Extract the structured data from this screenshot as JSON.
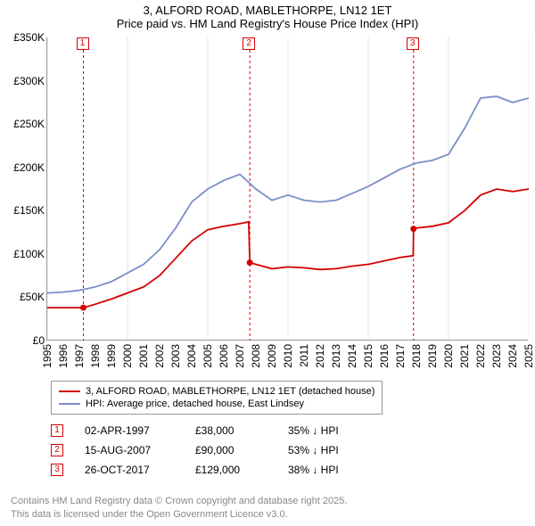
{
  "title": "3, ALFORD ROAD, MABLETHORPE, LN12 1ET",
  "subtitle": "Price paid vs. HM Land Registry's House Price Index (HPI)",
  "chart": {
    "type": "line",
    "background_color": "#ffffff",
    "grid_color": "#cccccc",
    "axis_color": "#999999",
    "label_fontsize": 12,
    "title_fontsize": 13,
    "x_axis": {
      "min": 1995,
      "max": 2025,
      "ticks": [
        1995,
        1996,
        1997,
        1998,
        1999,
        2000,
        2001,
        2002,
        2003,
        2004,
        2005,
        2006,
        2007,
        2008,
        2009,
        2010,
        2011,
        2012,
        2013,
        2014,
        2015,
        2016,
        2017,
        2018,
        2019,
        2020,
        2021,
        2022,
        2023,
        2024,
        2025
      ],
      "gridline_years": [
        1995,
        2000,
        2005,
        2010,
        2015,
        2020,
        2025
      ]
    },
    "y_axis": {
      "min": 0,
      "max": 350000,
      "tick_step": 50000,
      "tick_labels": [
        "£0",
        "£50K",
        "£100K",
        "£150K",
        "£200K",
        "£250K",
        "£300K",
        "£350K"
      ]
    },
    "series": [
      {
        "name": "price_paid",
        "label": "3, ALFORD ROAD, MABLETHORPE, LN12 1ET (detached house)",
        "color": "#d40000",
        "line_width": 1.8,
        "data": [
          [
            1995,
            38000
          ],
          [
            1996,
            38000
          ],
          [
            1997,
            38000
          ],
          [
            1997.25,
            38000
          ],
          [
            1998,
            42000
          ],
          [
            1999,
            48000
          ],
          [
            2000,
            55000
          ],
          [
            2001,
            62000
          ],
          [
            2002,
            75000
          ],
          [
            2003,
            95000
          ],
          [
            2004,
            115000
          ],
          [
            2005,
            128000
          ],
          [
            2006,
            132000
          ],
          [
            2007,
            135000
          ],
          [
            2007.55,
            137000
          ],
          [
            2007.62,
            90000
          ],
          [
            2008,
            88000
          ],
          [
            2009,
            83000
          ],
          [
            2010,
            85000
          ],
          [
            2011,
            84000
          ],
          [
            2012,
            82000
          ],
          [
            2013,
            83000
          ],
          [
            2014,
            86000
          ],
          [
            2015,
            88000
          ],
          [
            2016,
            92000
          ],
          [
            2017,
            96000
          ],
          [
            2017.8,
            98000
          ],
          [
            2017.82,
            129000
          ],
          [
            2018,
            130000
          ],
          [
            2019,
            132000
          ],
          [
            2020,
            136000
          ],
          [
            2021,
            150000
          ],
          [
            2022,
            168000
          ],
          [
            2023,
            175000
          ],
          [
            2024,
            172000
          ],
          [
            2025,
            175000
          ]
        ]
      },
      {
        "name": "hpi",
        "label": "HPI: Average price, detached house, East Lindsey",
        "color": "#7a8fc9",
        "line_width": 1.5,
        "data": [
          [
            1995,
            55000
          ],
          [
            1996,
            56000
          ],
          [
            1997,
            58000
          ],
          [
            1998,
            62000
          ],
          [
            1999,
            68000
          ],
          [
            2000,
            78000
          ],
          [
            2001,
            88000
          ],
          [
            2002,
            105000
          ],
          [
            2003,
            130000
          ],
          [
            2004,
            160000
          ],
          [
            2005,
            175000
          ],
          [
            2006,
            185000
          ],
          [
            2007,
            192000
          ],
          [
            2008,
            175000
          ],
          [
            2009,
            162000
          ],
          [
            2010,
            168000
          ],
          [
            2011,
            162000
          ],
          [
            2012,
            160000
          ],
          [
            2013,
            162000
          ],
          [
            2014,
            170000
          ],
          [
            2015,
            178000
          ],
          [
            2016,
            188000
          ],
          [
            2017,
            198000
          ],
          [
            2018,
            205000
          ],
          [
            2019,
            208000
          ],
          [
            2020,
            215000
          ],
          [
            2021,
            245000
          ],
          [
            2022,
            280000
          ],
          [
            2023,
            282000
          ],
          [
            2024,
            275000
          ],
          [
            2025,
            280000
          ]
        ]
      }
    ],
    "sale_markers": [
      {
        "index": 1,
        "year": 1997.25,
        "price": 38000,
        "color": "#d40000"
      },
      {
        "index": 2,
        "year": 2007.62,
        "price": 90000,
        "color": "#d40000"
      },
      {
        "index": 3,
        "year": 2017.82,
        "price": 129000,
        "color": "#d40000"
      }
    ]
  },
  "legend": {
    "items": [
      {
        "color": "#d40000",
        "label": "3, ALFORD ROAD, MABLETHORPE, LN12 1ET (detached house)"
      },
      {
        "color": "#7a8fc9",
        "label": "HPI: Average price, detached house, East Lindsey"
      }
    ]
  },
  "sales": [
    {
      "index": "1",
      "date": "02-APR-1997",
      "price": "£38,000",
      "diff": "35% ↓ HPI",
      "color": "#d40000"
    },
    {
      "index": "2",
      "date": "15-AUG-2007",
      "price": "£90,000",
      "diff": "53% ↓ HPI",
      "color": "#d40000"
    },
    {
      "index": "3",
      "date": "26-OCT-2017",
      "price": "£129,000",
      "diff": "38% ↓ HPI",
      "color": "#d40000"
    }
  ],
  "footer": {
    "line1": "Contains HM Land Registry data © Crown copyright and database right 2025.",
    "line2": "This data is licensed under the Open Government Licence v3.0."
  }
}
